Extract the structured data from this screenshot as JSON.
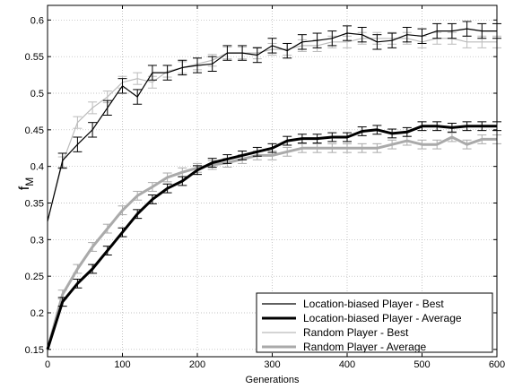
{
  "chart_data": {
    "type": "line",
    "title": "",
    "xlabel": "Generations",
    "ylabel": "f",
    "ylabel_sub": "M",
    "xlim": [
      0,
      600
    ],
    "ylim": [
      0.14,
      0.62
    ],
    "xticks": [
      0,
      100,
      200,
      300,
      400,
      500,
      600
    ],
    "yticks": [
      0.15,
      0.2,
      0.25,
      0.3,
      0.35,
      0.4,
      0.45,
      0.5,
      0.55,
      0.6
    ],
    "grid": true,
    "legend_position": "bottom-right",
    "x": [
      0,
      20,
      40,
      60,
      80,
      100,
      120,
      140,
      160,
      180,
      200,
      220,
      240,
      260,
      280,
      300,
      320,
      340,
      360,
      380,
      400,
      420,
      440,
      460,
      480,
      500,
      520,
      540,
      560,
      580,
      600
    ],
    "series": [
      {
        "name": "Random Player - Best",
        "color": "#bbbbbb",
        "width": "thin",
        "values": [
          0.325,
          0.405,
          0.46,
          0.48,
          0.495,
          0.515,
          0.52,
          0.515,
          0.53,
          0.535,
          0.54,
          0.545,
          0.555,
          0.555,
          0.555,
          0.56,
          0.56,
          0.565,
          0.565,
          0.57,
          0.57,
          0.575,
          0.575,
          0.575,
          0.575,
          0.57,
          0.575,
          0.575,
          0.57,
          0.57,
          0.57
        ],
        "error": 0.008
      },
      {
        "name": "Location-biased Player - Best",
        "color": "#000000",
        "width": "thin",
        "values": [
          0.325,
          0.408,
          0.43,
          0.45,
          0.48,
          0.51,
          0.495,
          0.528,
          0.528,
          0.535,
          0.538,
          0.54,
          0.555,
          0.555,
          0.552,
          0.565,
          0.558,
          0.57,
          0.572,
          0.575,
          0.582,
          0.58,
          0.57,
          0.572,
          0.58,
          0.578,
          0.585,
          0.585,
          0.588,
          0.585,
          0.585
        ],
        "error": 0.01
      },
      {
        "name": "Random Player - Average",
        "color": "#aaaaaa",
        "width": "thick",
        "values": [
          0.15,
          0.225,
          0.26,
          0.29,
          0.315,
          0.34,
          0.36,
          0.372,
          0.385,
          0.392,
          0.398,
          0.402,
          0.405,
          0.41,
          0.415,
          0.415,
          0.42,
          0.425,
          0.425,
          0.425,
          0.425,
          0.425,
          0.425,
          0.43,
          0.435,
          0.43,
          0.43,
          0.44,
          0.43,
          0.437,
          0.437
        ],
        "error": 0.006
      },
      {
        "name": "Location-biased Player - Average",
        "color": "#000000",
        "width": "thick",
        "values": [
          0.15,
          0.215,
          0.24,
          0.26,
          0.285,
          0.31,
          0.335,
          0.355,
          0.37,
          0.38,
          0.395,
          0.405,
          0.41,
          0.415,
          0.42,
          0.425,
          0.435,
          0.438,
          0.438,
          0.44,
          0.44,
          0.448,
          0.45,
          0.445,
          0.447,
          0.455,
          0.455,
          0.453,
          0.455,
          0.455,
          0.455
        ],
        "error": 0.006
      }
    ],
    "legend_order": [
      "Location-biased Player - Best",
      "Location-biased Player - Average",
      "Random Player - Best",
      "Random Player - Average"
    ]
  }
}
